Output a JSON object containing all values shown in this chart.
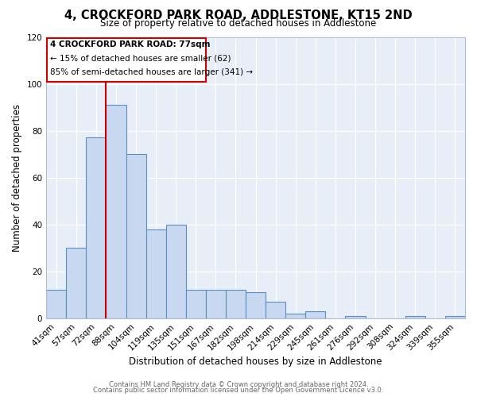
{
  "title": "4, CROCKFORD PARK ROAD, ADDLESTONE, KT15 2ND",
  "subtitle": "Size of property relative to detached houses in Addlestone",
  "xlabel": "Distribution of detached houses by size in Addlestone",
  "ylabel": "Number of detached properties",
  "bar_color": "#c8d8f0",
  "bar_edge_color": "#5a8fc0",
  "categories": [
    "41sqm",
    "57sqm",
    "72sqm",
    "88sqm",
    "104sqm",
    "119sqm",
    "135sqm",
    "151sqm",
    "167sqm",
    "182sqm",
    "198sqm",
    "214sqm",
    "229sqm",
    "245sqm",
    "261sqm",
    "276sqm",
    "292sqm",
    "308sqm",
    "324sqm",
    "339sqm",
    "355sqm"
  ],
  "values": [
    12,
    30,
    77,
    91,
    70,
    38,
    40,
    12,
    12,
    12,
    11,
    7,
    2,
    3,
    0,
    1,
    0,
    0,
    1,
    0,
    1
  ],
  "vline_color": "#cc0000",
  "annotation_title": "4 CROCKFORD PARK ROAD: 77sqm",
  "annotation_line1": "← 15% of detached houses are smaller (62)",
  "annotation_line2": "85% of semi-detached houses are larger (341) →",
  "annotation_box_color": "#ffffff",
  "annotation_box_edge": "#cc0000",
  "ylim": [
    0,
    120
  ],
  "yticks": [
    0,
    20,
    40,
    60,
    80,
    100,
    120
  ],
  "footer1": "Contains HM Land Registry data © Crown copyright and database right 2024.",
  "footer2": "Contains public sector information licensed under the Open Government Licence v3.0.",
  "bg_color": "#e8eef8"
}
